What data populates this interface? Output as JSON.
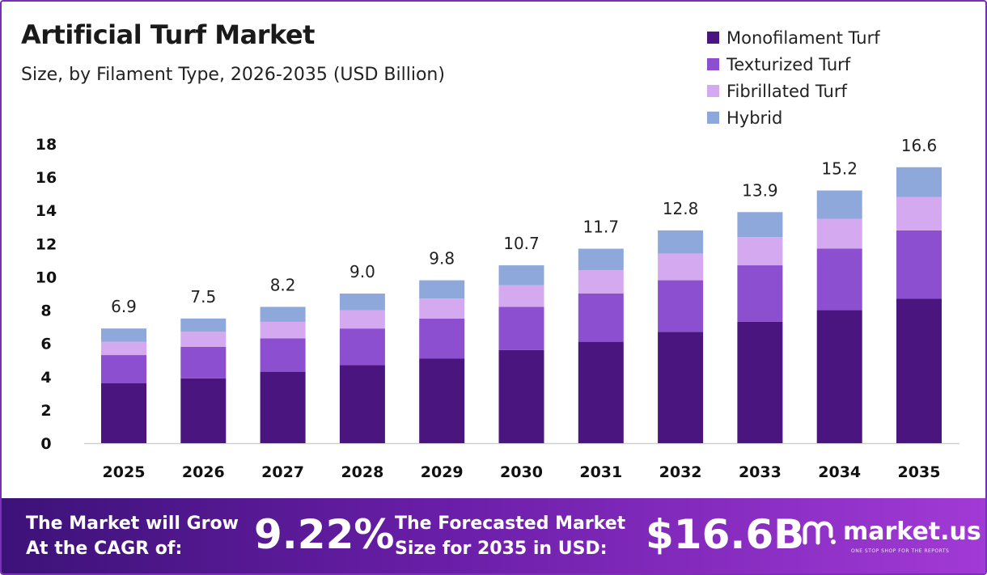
{
  "header": {
    "title": "Artificial Turf Market",
    "subtitle": "Size, by Filament Type, 2026-2035 (USD Billion)"
  },
  "colors": {
    "monofilament": "#4b1580",
    "texturized": "#8b4fcf",
    "fibrillated": "#d5a9ef",
    "hybrid": "#8fa8dc",
    "footer_start": "#3c1278",
    "footer_end": "#a23ad6"
  },
  "chart_data": {
    "type": "bar",
    "stacked": true,
    "categories": [
      "2025",
      "2026",
      "2027",
      "2028",
      "2029",
      "2030",
      "2031",
      "2032",
      "2033",
      "2034",
      "2035"
    ],
    "series": [
      {
        "name": "Monofilament Turf",
        "color": "#4b1580",
        "values": [
          3.6,
          3.9,
          4.3,
          4.7,
          5.1,
          5.6,
          6.1,
          6.7,
          7.3,
          8.0,
          8.7
        ]
      },
      {
        "name": "Texturized Turf",
        "color": "#8b4fcf",
        "values": [
          1.7,
          1.9,
          2.0,
          2.2,
          2.4,
          2.6,
          2.9,
          3.1,
          3.4,
          3.7,
          4.1
        ]
      },
      {
        "name": "Fibrillated Turf",
        "color": "#d5a9ef",
        "values": [
          0.8,
          0.9,
          1.0,
          1.1,
          1.2,
          1.3,
          1.4,
          1.6,
          1.7,
          1.8,
          2.0
        ]
      },
      {
        "name": "Hybrid",
        "color": "#8fa8dc",
        "values": [
          0.8,
          0.8,
          0.9,
          1.0,
          1.1,
          1.2,
          1.3,
          1.4,
          1.5,
          1.7,
          1.8
        ]
      }
    ],
    "totals": [
      "6.9",
      "7.5",
      "8.2",
      "9.0",
      "9.8",
      "10.7",
      "11.7",
      "12.8",
      "13.9",
      "15.2",
      "16.6"
    ],
    "ylim": [
      0,
      18
    ],
    "yticks": [
      0,
      2,
      4,
      6,
      8,
      10,
      12,
      14,
      16,
      18
    ],
    "grid": false,
    "legend_position": "top-right"
  },
  "footer": {
    "cagr_label": "The Market will Grow\nAt the CAGR of:",
    "cagr_value": "9.22%",
    "forecast_label": "The Forecasted Market\nSize for 2035 in USD:",
    "forecast_value": "$16.6B",
    "logo_name": "market.us",
    "logo_tagline": "ONE STOP SHOP FOR THE REPORTS"
  }
}
